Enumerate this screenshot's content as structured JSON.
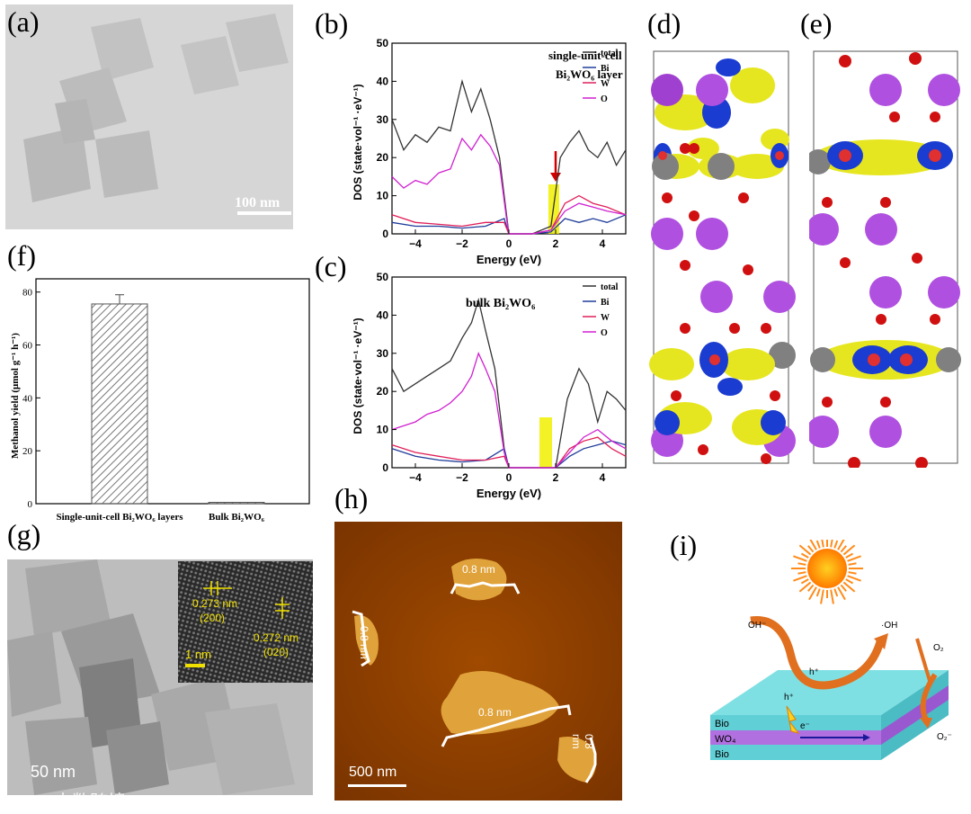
{
  "labels": {
    "a": "(a)",
    "b": "(b)",
    "c": "(c)",
    "d": "(d)",
    "e": "(e)",
    "f": "(f)",
    "g": "(g)",
    "h": "(h)",
    "i": "(i)"
  },
  "panel_a": {
    "scale_bar": "100 nm"
  },
  "panel_b": {
    "annotation_line1": "single-unit-cell",
    "annotation_line2": "Bi₂WO₆ layer",
    "xlabel": "Energy (eV)",
    "ylabel": "DOS (state·vol⁻¹ ·eV⁻¹)",
    "legend": [
      "total",
      "Bi",
      "W",
      "O"
    ],
    "xticks": [
      "-4",
      "-2",
      "0",
      "2",
      "4"
    ],
    "yticks": [
      "0",
      "10",
      "20",
      "30",
      "40",
      "50"
    ]
  },
  "panel_c": {
    "annotation": "bulk Bi₂WO₆",
    "xlabel": "Energy (eV)",
    "ylabel": "DOS (state·vol⁻¹ ·eV⁻¹)",
    "legend": [
      "total",
      "Bi",
      "W",
      "O"
    ],
    "xticks": [
      "-4",
      "-2",
      "0",
      "2",
      "4"
    ],
    "yticks": [
      "0",
      "10",
      "20",
      "30",
      "40",
      "50"
    ]
  },
  "chart_data": [
    {
      "type": "line",
      "title": "single-unit-cell Bi2WO6 layer DOS",
      "xlabel": "Energy (eV)",
      "ylabel": "DOS (state·vol⁻¹ ·eV⁻¹)",
      "xlim": [
        -5,
        5
      ],
      "ylim": [
        0,
        50
      ],
      "series": [
        {
          "name": "total",
          "color": "#333333",
          "x": [
            -5,
            -4.5,
            -4,
            -3.5,
            -3,
            -2.5,
            -2,
            -1.6,
            -1.2,
            -0.8,
            -0.4,
            -0.1,
            0,
            1,
            1.8,
            2.2,
            2.6,
            3,
            3.4,
            3.8,
            4.2,
            4.6,
            5
          ],
          "values": [
            30,
            22,
            26,
            24,
            28,
            27,
            40,
            32,
            38,
            30,
            20,
            5,
            0,
            0,
            2,
            20,
            24,
            27,
            22,
            20,
            24,
            18,
            22
          ]
        },
        {
          "name": "Bi",
          "color": "#1f3c9a",
          "x": [
            -5,
            -4,
            -3,
            -2,
            -1,
            -0.2,
            0,
            1,
            1.8,
            2.4,
            3,
            3.6,
            4.2,
            5
          ],
          "values": [
            3,
            2,
            2,
            1.5,
            2,
            4,
            0,
            0,
            0.5,
            4,
            3,
            4,
            3,
            5
          ]
        },
        {
          "name": "W",
          "color": "#e0205a",
          "x": [
            -5,
            -4,
            -3,
            -2,
            -1,
            -0.2,
            0,
            1,
            1.8,
            2.4,
            3,
            3.6,
            4.2,
            5
          ],
          "values": [
            5,
            3,
            2.5,
            2,
            3,
            3,
            0,
            0,
            1,
            8,
            10,
            8,
            7,
            5
          ]
        },
        {
          "name": "O",
          "color": "#d020d0",
          "x": [
            -5,
            -4.5,
            -4,
            -3.5,
            -3,
            -2.5,
            -2,
            -1.6,
            -1.2,
            -0.8,
            -0.4,
            -0.1,
            0,
            1,
            1.8,
            2.4,
            3,
            3.6,
            4.2,
            5
          ],
          "values": [
            15,
            12,
            14,
            13,
            16,
            17,
            25,
            22,
            26,
            23,
            18,
            4,
            0,
            0,
            1,
            6,
            8,
            7,
            6,
            5
          ]
        }
      ]
    },
    {
      "type": "line",
      "title": "bulk Bi2WO6 DOS",
      "xlabel": "Energy (eV)",
      "ylabel": "DOS (state·vol⁻¹ ·eV⁻¹)",
      "xlim": [
        -5,
        5
      ],
      "ylim": [
        0,
        50
      ],
      "series": [
        {
          "name": "total",
          "color": "#333333",
          "x": [
            -5,
            -4.5,
            -4,
            -3.5,
            -3,
            -2.5,
            -2,
            -1.6,
            -1.3,
            -1,
            -0.6,
            -0.2,
            0,
            1,
            2,
            2.5,
            3,
            3.4,
            3.8,
            4.2,
            4.6,
            5
          ],
          "values": [
            26,
            20,
            22,
            24,
            26,
            28,
            34,
            38,
            44,
            36,
            26,
            5,
            0,
            0,
            0,
            18,
            26,
            22,
            12,
            20,
            18,
            15
          ]
        },
        {
          "name": "Bi",
          "color": "#1f3c9a",
          "x": [
            -5,
            -4,
            -3,
            -2,
            -1,
            -0.2,
            0,
            1,
            2,
            2.6,
            3.2,
            3.8,
            4.4,
            5
          ],
          "values": [
            5,
            3,
            2,
            1.5,
            2,
            5,
            0,
            0,
            0,
            3,
            5,
            6,
            7,
            6
          ]
        },
        {
          "name": "W",
          "color": "#e0205a",
          "x": [
            -5,
            -4,
            -3,
            -2,
            -1,
            -0.2,
            0,
            1,
            2,
            2.6,
            3.2,
            3.8,
            4.4,
            5
          ],
          "values": [
            6,
            4,
            3,
            2,
            2,
            3,
            0,
            0,
            0,
            5,
            7,
            8,
            5,
            3
          ]
        },
        {
          "name": "O",
          "color": "#d020d0",
          "x": [
            -5,
            -4.5,
            -4,
            -3.5,
            -3,
            -2.5,
            -2,
            -1.6,
            -1.3,
            -1,
            -0.6,
            -0.2,
            0,
            1,
            2,
            2.6,
            3.2,
            3.8,
            4.4,
            5
          ],
          "values": [
            10,
            11,
            12,
            14,
            15,
            17,
            20,
            24,
            30,
            26,
            20,
            4,
            0,
            0,
            0,
            4,
            8,
            10,
            7,
            5
          ]
        }
      ]
    },
    {
      "type": "bar",
      "title": "",
      "categories": [
        "Single-unit-cell Bi₂WO₆ layers",
        "Bulk Bi₂WO₆"
      ],
      "values": [
        75.5,
        0.5
      ],
      "errors": [
        3.5,
        0
      ],
      "ylabel": "Methanol yield (μmol g⁻¹ h⁻¹)",
      "xlabel": "",
      "ylim": [
        0,
        85
      ],
      "yticks": [
        "0",
        "20",
        "40",
        "60",
        "80"
      ]
    }
  ],
  "panel_g": {
    "inset_d1": "0.273 nm",
    "inset_h1": "(200)",
    "inset_d2": "0.272 nm",
    "inset_h2": "(020)",
    "inset_scale": "1 nm",
    "scale_bar": "50 nm"
  },
  "panel_h": {
    "height_labels": [
      "0.8 nm",
      "0.8 nm",
      "0.8 nm",
      "0.8 nm"
    ],
    "scale_bar": "500 nm"
  },
  "panel_i": {
    "oh_minus": "OH⁻",
    "oh_radical": "·OH",
    "o2": "O₂",
    "o2_minus": "O₂⁻",
    "hole": "h⁺",
    "electron": "e⁻",
    "layer_top": "Bio",
    "layer_mid": "WO₄",
    "layer_bottom": "Bio"
  },
  "watermark": "大数跨境"
}
